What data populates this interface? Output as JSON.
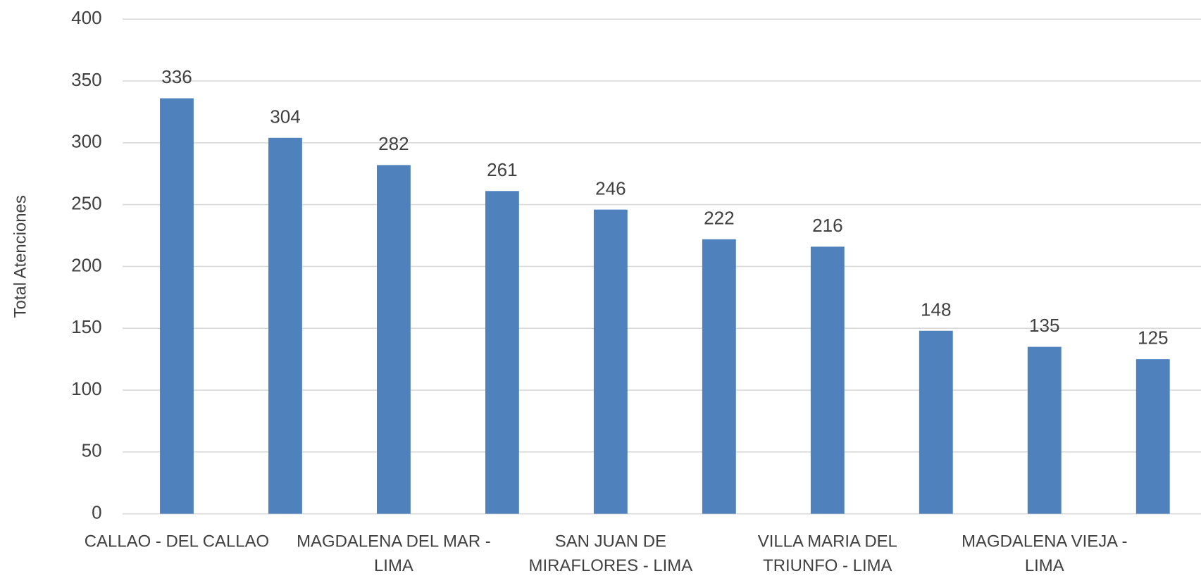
{
  "chart_data": {
    "type": "bar",
    "y_label": "Total Atenciones",
    "categories": [
      "CALLAO - DEL CALLAO",
      null,
      "MAGDALENA DEL MAR - LIMA",
      null,
      "SAN JUAN DE MIRAFLORES - LIMA",
      null,
      "VILLA MARIA DEL TRIUNFO - LIMA",
      null,
      "MAGDALENA VIEJA - LIMA",
      null
    ],
    "values": [
      336,
      304,
      282,
      261,
      246,
      222,
      216,
      148,
      135,
      125
    ],
    "color": "#4f81bd",
    "ylim": [
      0,
      400
    ],
    "yticks": [
      0,
      50,
      100,
      150,
      200,
      250,
      300,
      350,
      400
    ],
    "grid": true
  }
}
